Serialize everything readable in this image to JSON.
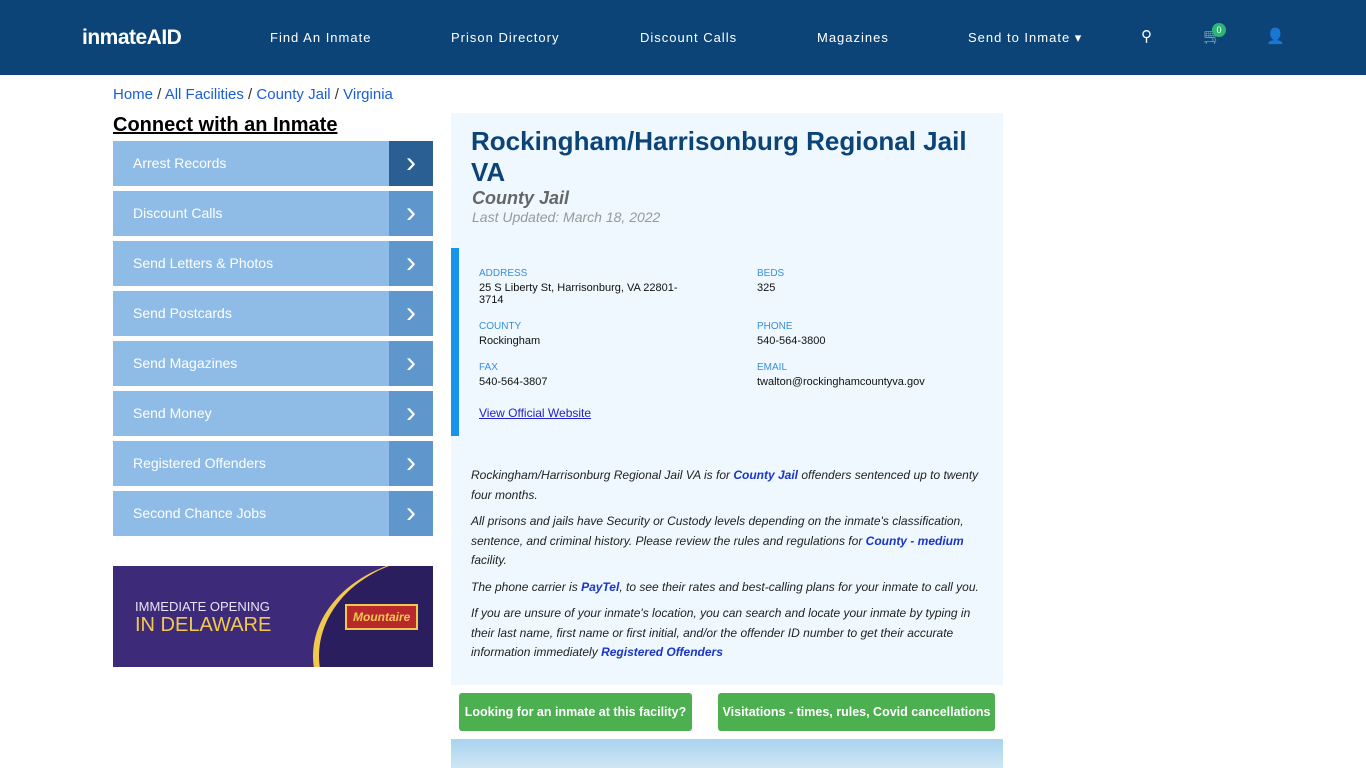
{
  "nav": {
    "logo": "inmateAID",
    "items": [
      "Find An Inmate",
      "Prison Directory",
      "Discount Calls",
      "Magazines",
      "Send to Inmate ▾"
    ],
    "cart_count": "0"
  },
  "breadcrumb": [
    "Home",
    "All Facilities",
    "County Jail",
    "Virginia"
  ],
  "sidebar": {
    "title": "Connect with an Inmate",
    "items": [
      "Arrest Records",
      "Discount Calls",
      "Send Letters & Photos",
      "Send Postcards",
      "Send Magazines",
      "Send Money",
      "Registered Offenders",
      "Second Chance Jobs"
    ]
  },
  "ad": {
    "line1": "IMMEDIATE OPENING",
    "line2": "IN DELAWARE",
    "brand": "Mountaire"
  },
  "facility": {
    "name": "Rockingham/Harrisonburg Regional Jail VA",
    "type": "County Jail",
    "updated": "Last Updated: March 18, 2022",
    "address_label": "ADDRESS",
    "address": "25 S Liberty St, Harrisonburg, VA 22801-3714",
    "beds_label": "BEDS",
    "beds": "325",
    "county_label": "COUNTY",
    "county": "Rockingham",
    "phone_label": "PHONE",
    "phone": "540-564-3800",
    "fax_label": "FAX",
    "fax": "540-564-3807",
    "email_label": "EMAIL",
    "email": "twalton@rockinghamcountyva.gov",
    "website": "View Official Website"
  },
  "desc": {
    "p1a": "Rockingham/Harrisonburg Regional Jail VA is for ",
    "p1b": "County Jail",
    "p1c": " offenders sentenced up to twenty four months.",
    "p2a": "All prisons and jails have Security or Custody levels depending on the inmate's classification, sentence, and criminal history. Please review the rules and regulations for ",
    "p2b": "County - medium",
    "p2c": " facility.",
    "p3a": "The phone carrier is ",
    "p3b": "PayTel",
    "p3c": ", to see their rates and best-calling plans for your inmate to call you.",
    "p4a": "If you are unsure of your inmate's location, you can search and locate your inmate by typing in their last name, first name or first initial, and/or the offender ID number to get their accurate information immediately ",
    "p4b": "Registered Offenders"
  },
  "buttons": {
    "find": "Looking for an inmate at this facility?",
    "visit": "Visitations - times, rules, Covid cancellations"
  }
}
